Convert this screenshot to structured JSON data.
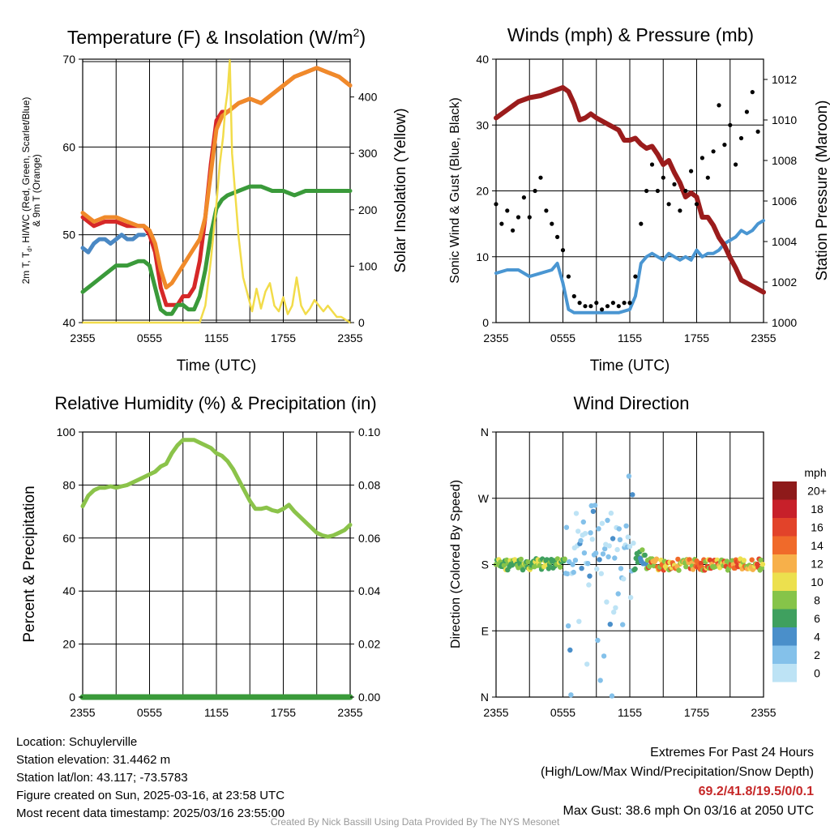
{
  "chart_data": [
    {
      "type": "line",
      "title": "Temperature (F) & Insolation (W/m²)",
      "xlabel": "Time (UTC)",
      "ylabel": "2m T, Td, HI/WC (Red, Green, Scarlet/Blue) & 9m T (Orange)",
      "ylabel_right": "Solar Insolation (Yellow)",
      "x_ticks": [
        "2355",
        "0555",
        "1155",
        "1755",
        "2355"
      ],
      "ylim": [
        40,
        70
      ],
      "y_ticks": [
        "40",
        "50",
        "60",
        "70"
      ],
      "ylim_right": [
        0,
        467
      ],
      "y_ticks_right": [
        "0",
        "100",
        "200",
        "300",
        "400"
      ],
      "series": [
        {
          "color": "#d62828",
          "axis": "left",
          "x": [
            0,
            1,
            2,
            3,
            4,
            5,
            5.5,
            6,
            6.5,
            7,
            7.5,
            8,
            8.5,
            9,
            9.5,
            10,
            10.5,
            11,
            11.5,
            12,
            12.5,
            13,
            14,
            15,
            16,
            17,
            18,
            19,
            20,
            21,
            22,
            23,
            24
          ],
          "y": [
            52,
            51,
            51.5,
            51.5,
            51,
            51,
            51,
            50,
            48,
            44,
            42,
            42,
            42,
            43,
            43,
            44,
            47,
            52,
            58,
            63,
            64,
            64,
            65,
            65.5,
            65,
            66,
            67,
            68,
            68.5,
            69,
            68.5,
            68,
            67
          ]
        },
        {
          "color": "#f08a2a",
          "axis": "left",
          "x": [
            0,
            1,
            2,
            3,
            4,
            5,
            5.5,
            6,
            6.5,
            7,
            7.5,
            8,
            8.5,
            9,
            9.5,
            10,
            10.5,
            11,
            11.5,
            12,
            12.5,
            13,
            14,
            15,
            16,
            17,
            18,
            19,
            20,
            21,
            22,
            23,
            24
          ],
          "y": [
            52.5,
            51.5,
            52,
            52,
            51.5,
            51,
            51,
            50.5,
            49,
            46,
            44,
            44.5,
            45.5,
            46.5,
            47.5,
            48.5,
            49.5,
            52,
            57,
            62,
            63.5,
            64,
            65,
            65.5,
            65,
            66,
            67,
            68,
            68.5,
            69,
            68.5,
            68,
            67
          ]
        },
        {
          "color": "#3a9a3a",
          "axis": "left",
          "x": [
            0,
            1,
            2,
            3,
            4,
            5,
            5.5,
            6,
            6.5,
            7,
            7.5,
            8,
            8.5,
            9,
            9.5,
            10,
            10.5,
            11,
            11.5,
            12,
            12.5,
            13,
            14,
            15,
            16,
            17,
            18,
            19,
            20,
            21,
            22,
            23,
            24
          ],
          "y": [
            43.5,
            44.5,
            45.5,
            46.5,
            46.5,
            47,
            47,
            46.5,
            44,
            41.5,
            41,
            41,
            42,
            42,
            41.5,
            41.5,
            43,
            46,
            50,
            53,
            54,
            54.5,
            55,
            55.5,
            55.5,
            55,
            55,
            54.5,
            55,
            55,
            55,
            55,
            55
          ]
        },
        {
          "color": "#4a88c4",
          "axis": "left",
          "x": [
            0,
            0.5,
            1,
            1.5,
            2,
            2.5,
            3,
            3.5,
            4,
            4.5,
            5,
            5.5
          ],
          "y": [
            48.5,
            48,
            49,
            49.5,
            49.5,
            49,
            49.5,
            50,
            49.5,
            49.5,
            50,
            50
          ]
        },
        {
          "color": "#f2dc4a",
          "axis": "right",
          "x": [
            0,
            5,
            10.5,
            11,
            11.5,
            12,
            12.3,
            12.6,
            12.8,
            13,
            13.2,
            13.4,
            13.6,
            14,
            14.4,
            14.8,
            15.2,
            15.6,
            16,
            16.4,
            16.8,
            17.2,
            17.6,
            18,
            18.4,
            18.8,
            19.2,
            19.6,
            20,
            20.4,
            20.8,
            21.2,
            21.6,
            22,
            22.4,
            22.8,
            23.2,
            23.6,
            24
          ],
          "y": [
            0,
            0,
            0,
            30,
            110,
            210,
            280,
            330,
            380,
            410,
            465,
            300,
            250,
            150,
            80,
            50,
            20,
            60,
            25,
            55,
            70,
            30,
            20,
            45,
            15,
            30,
            80,
            30,
            15,
            25,
            40,
            30,
            20,
            30,
            20,
            10,
            10,
            5,
            0
          ]
        }
      ]
    },
    {
      "type": "line",
      "title": "Winds (mph) & Pressure (mb)",
      "xlabel": "Time (UTC)",
      "ylabel": "Sonic Wind & Gust (Blue, Black)",
      "ylabel_right": "Station Pressure (Maroon)",
      "x_ticks": [
        "2355",
        "0555",
        "1155",
        "1755",
        "2355"
      ],
      "ylim": [
        0,
        40
      ],
      "y_ticks": [
        "0",
        "10",
        "20",
        "30",
        "40"
      ],
      "ylim_right": [
        1000,
        1013
      ],
      "y_ticks_right": [
        "1000",
        "1002",
        "1004",
        "1006",
        "1008",
        "1010",
        "1012"
      ],
      "series": [
        {
          "color": "#9b1c1c",
          "axis": "right",
          "x": [
            0,
            1,
            2,
            3,
            4,
            5,
            6,
            6.5,
            7,
            7.5,
            8,
            8.5,
            9,
            10,
            11,
            11.5,
            12,
            12.5,
            13,
            13.5,
            14,
            14.5,
            15,
            15.5,
            16,
            16.5,
            17,
            17.5,
            18,
            18.5,
            19,
            19.5,
            20,
            20.5,
            21,
            21.5,
            22,
            23,
            24
          ],
          "y": [
            1010.1,
            1010.5,
            1010.9,
            1011.1,
            1011.2,
            1011.4,
            1011.6,
            1011.4,
            1010.8,
            1010.0,
            1010.1,
            1010.3,
            1010.1,
            1009.8,
            1009.5,
            1009.0,
            1009.0,
            1009.1,
            1008.8,
            1008.6,
            1008.7,
            1008.3,
            1007.8,
            1008.0,
            1007.4,
            1006.9,
            1006.2,
            1006.4,
            1006.2,
            1005.2,
            1005.2,
            1004.8,
            1004.2,
            1003.8,
            1003.2,
            1002.7,
            1002.1,
            1001.8,
            1001.5
          ]
        },
        {
          "color": "#4a96d2",
          "axis": "left",
          "x": [
            0,
            1,
            2,
            3,
            4,
            5,
            5.5,
            6,
            6.5,
            7,
            8,
            9,
            10,
            11,
            12,
            12.5,
            13,
            13.5,
            14,
            14.5,
            15,
            15.5,
            16,
            16.5,
            17,
            17.5,
            18,
            18.5,
            19,
            19.5,
            20,
            20.5,
            21,
            21.5,
            22,
            22.5,
            23,
            23.5,
            24
          ],
          "y": [
            7.5,
            8,
            8,
            7,
            7.5,
            8,
            9,
            6,
            2,
            1.5,
            1.5,
            1.5,
            1.5,
            1.5,
            2,
            4,
            9,
            10,
            10.5,
            10,
            9.5,
            10.5,
            10,
            9.5,
            10,
            9.5,
            11,
            10,
            10.5,
            10.5,
            11,
            12,
            12.5,
            13,
            14,
            13.5,
            14,
            15,
            15.5
          ]
        },
        {
          "color": "#000000",
          "axis": "left",
          "style": "points",
          "x": [
            0,
            0.5,
            1,
            1.5,
            2,
            2.5,
            3,
            3.5,
            4,
            4.5,
            5,
            5.5,
            6,
            6.5,
            7,
            7.5,
            8,
            8.5,
            9,
            9.5,
            10,
            10.5,
            11,
            11.5,
            12,
            12.5,
            13,
            13.5,
            14,
            14.5,
            15,
            15.5,
            16,
            16.5,
            17,
            17.5,
            18,
            18.5,
            19,
            19.5,
            20,
            20.5,
            21,
            21.5,
            22,
            22.5,
            23,
            23.5
          ],
          "y": [
            18,
            15,
            17,
            14,
            16,
            19,
            16,
            20,
            22,
            17,
            15,
            13,
            11,
            7,
            4,
            3,
            2.5,
            2.5,
            3,
            2,
            2.5,
            3,
            2.5,
            3,
            3,
            7,
            15,
            20,
            24,
            20,
            22,
            18,
            21,
            17,
            20,
            23,
            18,
            25,
            22,
            26,
            33,
            27,
            30,
            24,
            28,
            32,
            35,
            29
          ]
        }
      ]
    },
    {
      "type": "line",
      "title": "Relative Humidity (%) & Precipitation (in)",
      "ylabel": "Percent & Precipitation",
      "x_ticks": [
        "2355",
        "0555",
        "1155",
        "1755",
        "2355"
      ],
      "ylim": [
        0,
        100
      ],
      "y_ticks": [
        "0",
        "20",
        "40",
        "60",
        "80",
        "100"
      ],
      "ylim_right": [
        0,
        0.1
      ],
      "y_ticks_right": [
        "0.00",
        "0.02",
        "0.04",
        "0.06",
        "0.08",
        "0.10"
      ],
      "series": [
        {
          "color": "#8bc34a",
          "axis": "left",
          "x": [
            0,
            0.5,
            1,
            1.5,
            2,
            2.5,
            3,
            3.5,
            4,
            4.5,
            5,
            5.5,
            6,
            6.5,
            7,
            7.5,
            8,
            8.5,
            9,
            9.5,
            10,
            10.5,
            11,
            11.5,
            12,
            12.5,
            13,
            13.5,
            14,
            14.5,
            15,
            15.5,
            16,
            16.5,
            17,
            17.5,
            18,
            18.5,
            19,
            19.5,
            20,
            20.5,
            21,
            21.5,
            22,
            22.5,
            23,
            23.5,
            24
          ],
          "y": [
            72,
            76,
            78,
            79,
            79,
            79.5,
            79,
            79.5,
            80,
            81,
            82,
            83,
            84,
            85,
            87,
            88,
            92,
            95,
            97,
            97,
            97,
            96,
            95,
            94,
            92,
            91,
            89,
            86,
            82,
            78,
            74,
            71,
            71,
            71.5,
            70.5,
            70,
            71,
            72.5,
            70,
            68,
            66,
            64,
            62,
            61,
            60.5,
            61,
            62,
            63,
            65
          ]
        },
        {
          "color": "#3a9a3a",
          "axis": "right",
          "x": [
            0,
            24
          ],
          "y": [
            0,
            0
          ]
        }
      ]
    },
    {
      "type": "scatter",
      "title": "Wind Direction",
      "ylabel": "Direction (Colored By Speed)",
      "x_ticks": [
        "2355",
        "0555",
        "1155",
        "1755",
        "2355"
      ],
      "y_ticks": [
        "N",
        "E",
        "S",
        "W",
        "N"
      ],
      "ylim": [
        0,
        360
      ],
      "legend_title": "mph",
      "legend_labels": [
        "0",
        "2",
        "4",
        "6",
        "8",
        "10",
        "12",
        "14",
        "16",
        "18",
        "20+"
      ],
      "legend_colors": [
        "#bde3f5",
        "#84c1ea",
        "#4a8fca",
        "#3fa05f",
        "#86c449",
        "#ece04e",
        "#f7b04a",
        "#f06a2a",
        "#e2432a",
        "#c7202a",
        "#8e1a1a"
      ]
    }
  ],
  "info": {
    "location": "Location: Schuylerville",
    "elevation": "Station elevation: 31.4462 m",
    "latlon": "Station lat/lon: 43.117; -73.5783",
    "created": "Figure created on Sun, 2025-03-16, at 23:58 UTC",
    "recent": "Most recent data timestamp: 2025/03/16 23:55:00"
  },
  "extremes": {
    "title": "Extremes For Past 24 Hours",
    "subtitle": "(High/Low/Max Wind/Precipitation/Snow Depth)",
    "values": "69.2/41.8/19.5/0/0.1",
    "gust": "Max Gust: 38.6 mph On 03/16 at 2050 UTC"
  },
  "credit": "Created By Nick Bassill Using Data Provided By The NYS Mesonet"
}
